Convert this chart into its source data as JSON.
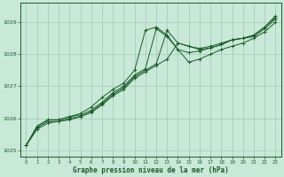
{
  "background_color": "#c8e8d8",
  "grid_color": "#a0c8b8",
  "line_color": "#1a5c28",
  "xlabel": "Graphe pression niveau de la mer (hPa)",
  "xlim": [
    -0.5,
    23.5
  ],
  "ylim": [
    1024.8,
    1029.6
  ],
  "yticks": [
    1025,
    1026,
    1027,
    1028,
    1029
  ],
  "xticks": [
    0,
    1,
    2,
    3,
    4,
    5,
    6,
    7,
    8,
    9,
    10,
    11,
    12,
    13,
    14,
    15,
    16,
    17,
    18,
    19,
    20,
    21,
    22,
    23
  ],
  "series": [
    [
      1025.15,
      1025.75,
      1025.95,
      1025.95,
      1026.05,
      1026.15,
      1026.35,
      1026.65,
      1026.9,
      1027.1,
      1027.5,
      1028.75,
      1028.85,
      1028.6,
      1028.15,
      1027.75,
      1027.85,
      1028.0,
      1028.15,
      1028.25,
      1028.35,
      1028.5,
      1028.7,
      1029.0
    ],
    [
      1025.15,
      1025.75,
      1025.95,
      1025.95,
      1026.05,
      1026.1,
      1026.25,
      1026.5,
      1026.8,
      1027.0,
      1027.35,
      1027.55,
      1028.8,
      1028.55,
      1028.15,
      1028.05,
      1028.1,
      1028.2,
      1028.3,
      1028.45,
      1028.5,
      1028.55,
      1028.8,
      1029.1
    ],
    [
      1025.15,
      1025.7,
      1025.9,
      1025.9,
      1026.0,
      1026.05,
      1026.2,
      1026.45,
      1026.75,
      1026.95,
      1027.3,
      1027.5,
      1027.7,
      1028.75,
      1028.35,
      1028.25,
      1028.15,
      1028.2,
      1028.3,
      1028.45,
      1028.5,
      1028.6,
      1028.85,
      1029.15
    ],
    [
      1025.15,
      1025.65,
      1025.85,
      1025.9,
      1025.95,
      1026.05,
      1026.18,
      1026.42,
      1026.7,
      1026.9,
      1027.25,
      1027.45,
      1027.65,
      1027.85,
      1028.35,
      1028.25,
      1028.18,
      1028.25,
      1028.35,
      1028.45,
      1028.5,
      1028.6,
      1028.85,
      1029.2
    ]
  ]
}
